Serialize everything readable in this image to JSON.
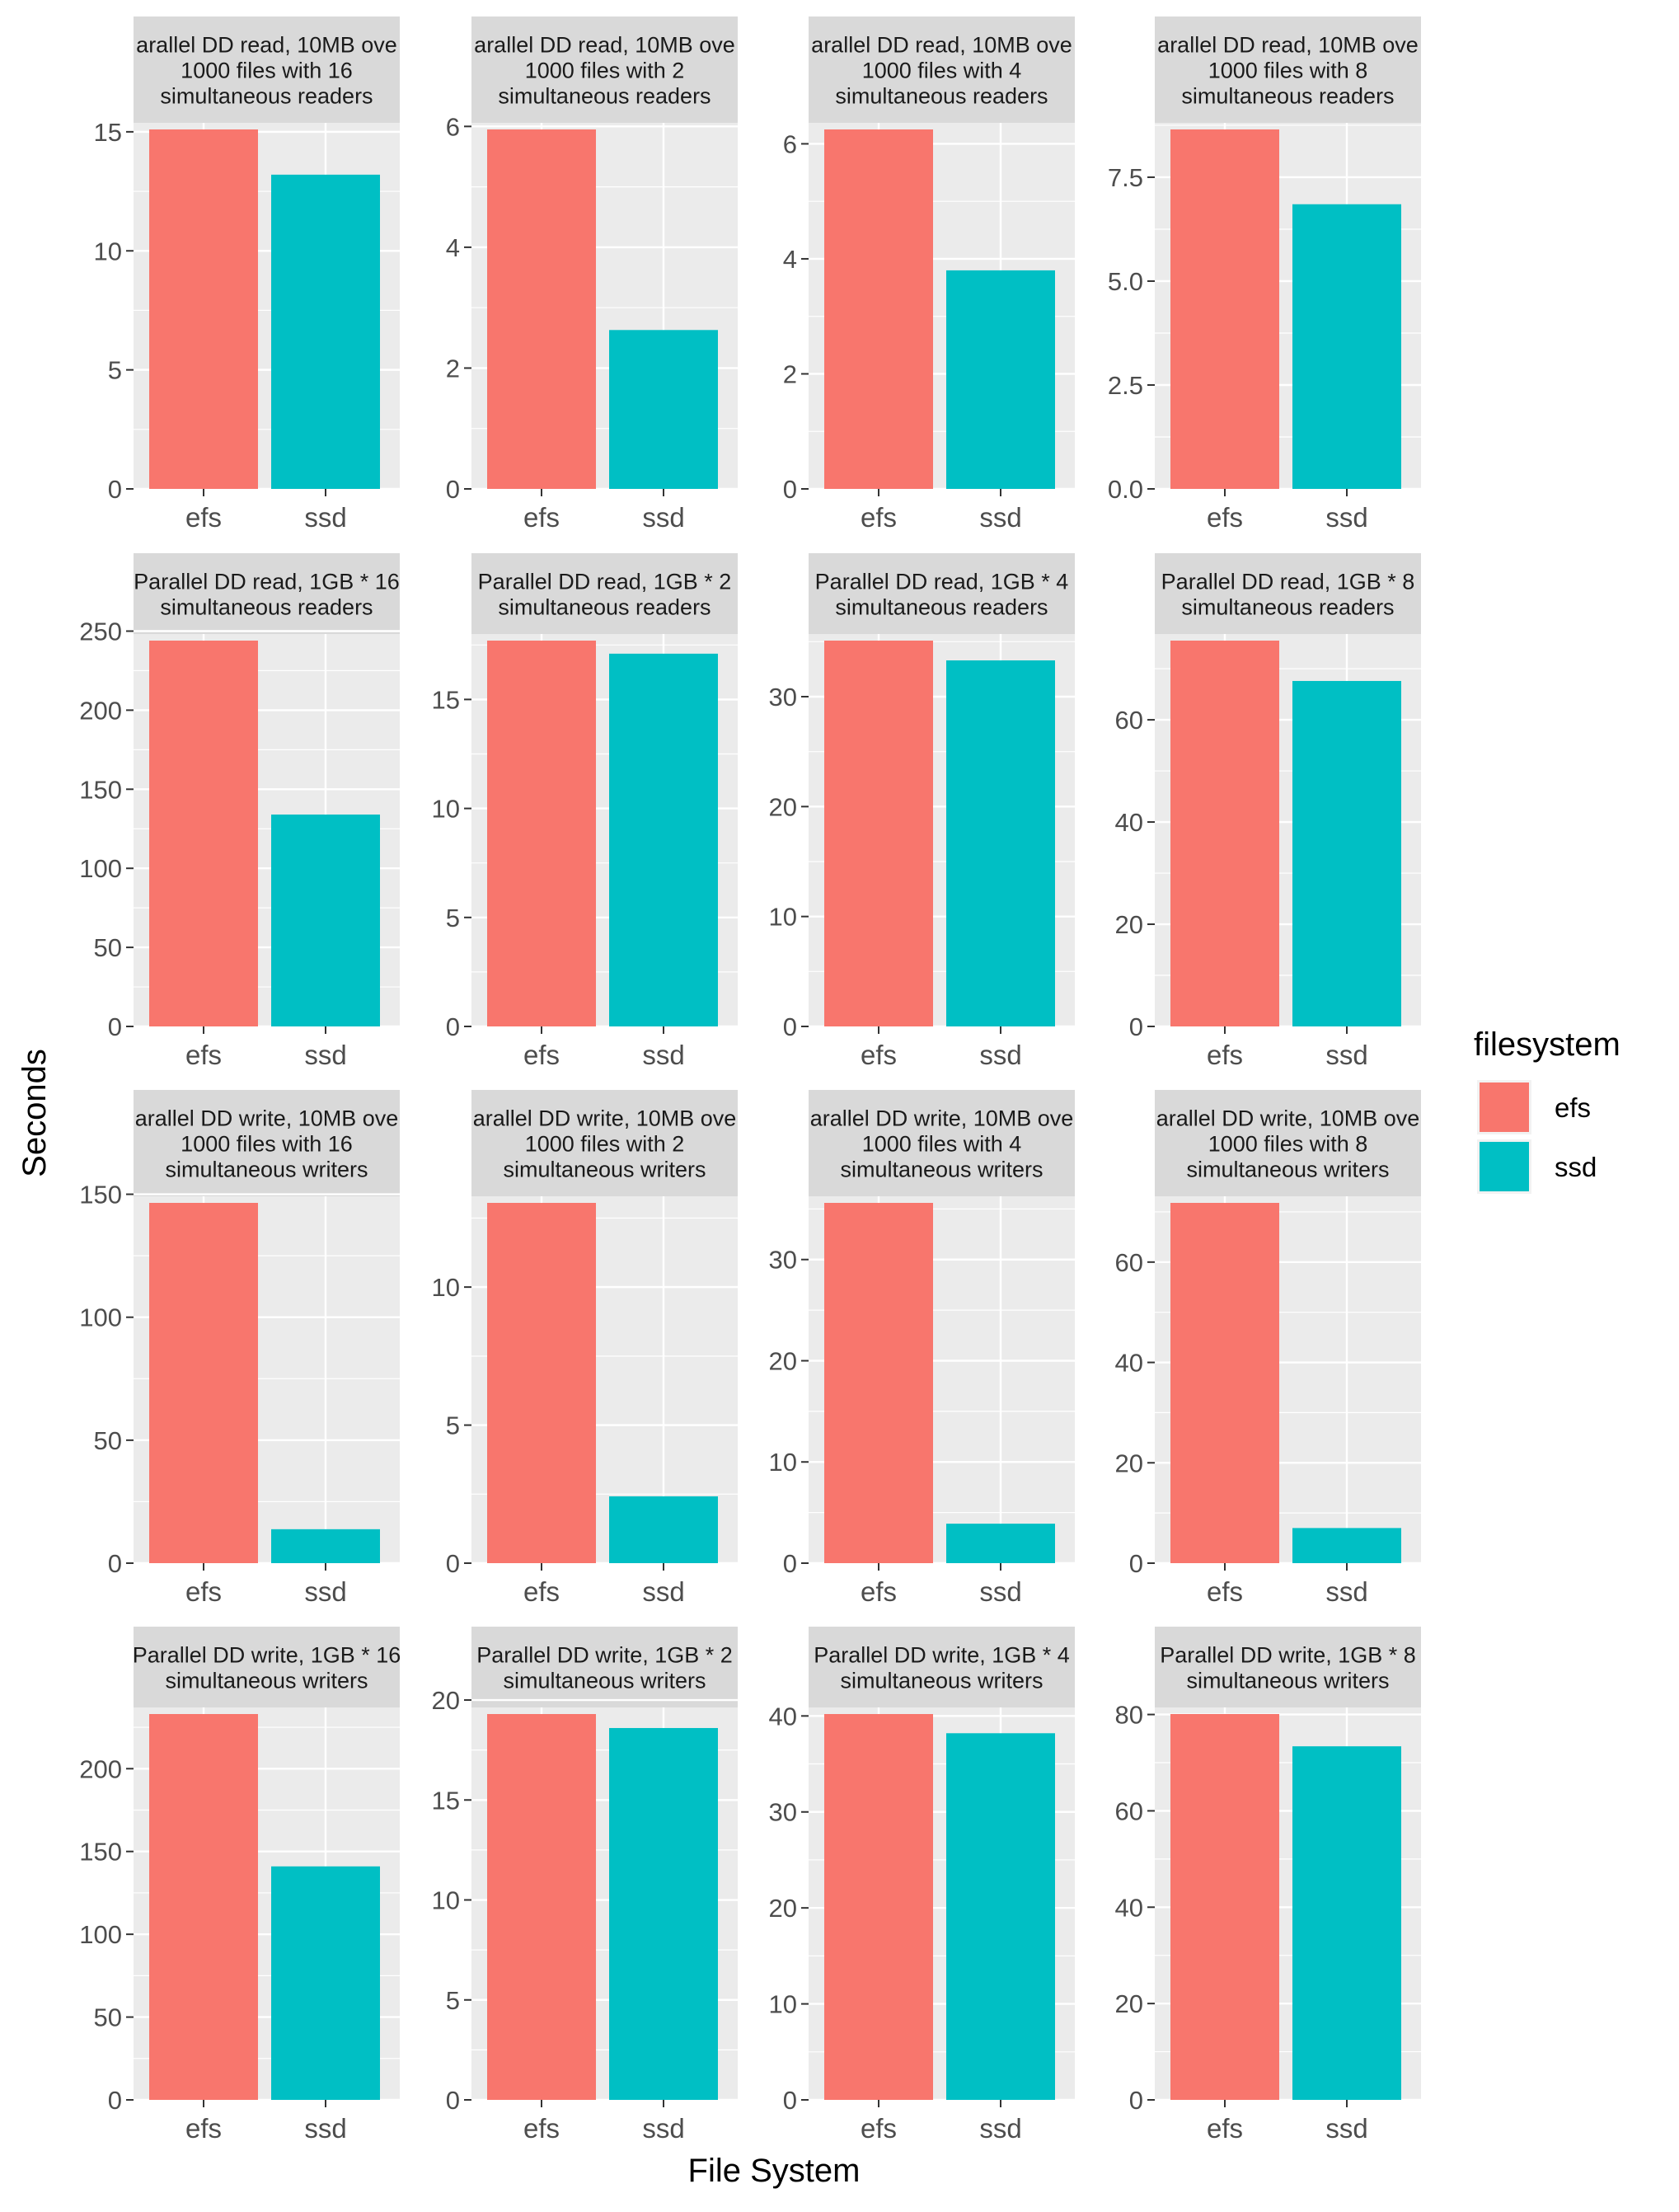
{
  "chart_data": {
    "type": "bar",
    "facet_layout": "4x4 grid, independent y scales",
    "xlabel": "File System",
    "ylabel": "Seconds",
    "legend": {
      "title": "filesystem",
      "position": "right",
      "entries": [
        {
          "label": "efs",
          "color": "#F8766D"
        },
        {
          "label": "ssd",
          "color": "#00BFC4"
        }
      ]
    },
    "categories": [
      "efs",
      "ssd"
    ],
    "panels": [
      {
        "strip": [
          "arallel DD read, 10MB ove",
          "1000 files with 16",
          "simultaneous readers"
        ],
        "values": [
          15.1,
          13.2
        ],
        "ylim": [
          0,
          15.1
        ],
        "yticks": [
          0,
          5,
          10,
          15
        ],
        "ytick_labels": [
          "0",
          "5",
          "10",
          "15"
        ]
      },
      {
        "strip": [
          "arallel DD read, 10MB ove",
          "1000 files with 2",
          "simultaneous readers"
        ],
        "values": [
          5.95,
          2.63
        ],
        "ylim": [
          0,
          5.95
        ],
        "yticks": [
          0,
          2,
          4,
          6
        ],
        "ytick_labels": [
          "0",
          "2",
          "4",
          "6"
        ]
      },
      {
        "strip": [
          "arallel DD read, 10MB ove",
          "1000 files with 4",
          "simultaneous readers"
        ],
        "values": [
          6.25,
          3.8
        ],
        "ylim": [
          0,
          6.25
        ],
        "yticks": [
          0,
          2,
          4,
          6
        ],
        "ytick_labels": [
          "0",
          "2",
          "4",
          "6"
        ]
      },
      {
        "strip": [
          "arallel DD read, 10MB ove",
          "1000 files with 8",
          "simultaneous readers"
        ],
        "values": [
          8.65,
          6.85
        ],
        "ylim": [
          0,
          8.65
        ],
        "yticks": [
          0,
          2.5,
          5,
          7.5
        ],
        "ytick_labels": [
          "0.0",
          "2.5",
          "5.0",
          "7.5"
        ]
      },
      {
        "strip": [
          "Parallel DD read, 1GB * 16",
          "simultaneous readers"
        ],
        "values": [
          244,
          134
        ],
        "ylim": [
          0,
          244
        ],
        "yticks": [
          0,
          50,
          100,
          150,
          200,
          250
        ],
        "ytick_labels": [
          "0",
          "50",
          "100",
          "150",
          "200",
          "250"
        ]
      },
      {
        "strip": [
          "Parallel DD read, 1GB * 2",
          "simultaneous readers"
        ],
        "values": [
          17.7,
          17.1
        ],
        "ylim": [
          0,
          17.7
        ],
        "yticks": [
          0,
          5,
          10,
          15
        ],
        "ytick_labels": [
          "0",
          "5",
          "10",
          "15"
        ]
      },
      {
        "strip": [
          "Parallel DD read, 1GB * 4",
          "simultaneous readers"
        ],
        "values": [
          35.1,
          33.3
        ],
        "ylim": [
          0,
          35.1
        ],
        "yticks": [
          0,
          10,
          20,
          30
        ],
        "ytick_labels": [
          "0",
          "10",
          "20",
          "30"
        ]
      },
      {
        "strip": [
          "Parallel DD read, 1GB * 8",
          "simultaneous readers"
        ],
        "values": [
          75.5,
          67.6
        ],
        "ylim": [
          0,
          75.5
        ],
        "yticks": [
          0,
          20,
          40,
          60
        ],
        "ytick_labels": [
          "0",
          "20",
          "40",
          "60"
        ]
      },
      {
        "strip": [
          "arallel DD write, 10MB ove",
          "1000 files with 16",
          "simultaneous writers"
        ],
        "values": [
          146.5,
          13.8
        ],
        "ylim": [
          0,
          146.5
        ],
        "yticks": [
          0,
          50,
          100,
          150
        ],
        "ytick_labels": [
          "0",
          "50",
          "100",
          "150"
        ]
      },
      {
        "strip": [
          "arallel DD write, 10MB ove",
          "1000 files with 2",
          "simultaneous writers"
        ],
        "values": [
          13.05,
          2.42
        ],
        "ylim": [
          0,
          13.05
        ],
        "yticks": [
          0,
          5,
          10
        ],
        "ytick_labels": [
          "0",
          "5",
          "10"
        ]
      },
      {
        "strip": [
          "arallel DD write, 10MB ove",
          "1000 files with 4",
          "simultaneous writers"
        ],
        "values": [
          35.6,
          3.9
        ],
        "ylim": [
          0,
          35.6
        ],
        "yticks": [
          0,
          10,
          20,
          30
        ],
        "ytick_labels": [
          "0",
          "10",
          "20",
          "30"
        ]
      },
      {
        "strip": [
          "arallel DD write, 10MB ove",
          "1000 files with 8",
          "simultaneous writers"
        ],
        "values": [
          71.8,
          7.0
        ],
        "ylim": [
          0,
          71.8
        ],
        "yticks": [
          0,
          20,
          40,
          60
        ],
        "ytick_labels": [
          "0",
          "20",
          "40",
          "60"
        ]
      },
      {
        "strip": [
          "Parallel DD write, 1GB * 16",
          "simultaneous writers"
        ],
        "values": [
          233,
          141
        ],
        "ylim": [
          0,
          233
        ],
        "yticks": [
          0,
          50,
          100,
          150,
          200
        ],
        "ytick_labels": [
          "0",
          "50",
          "100",
          "150",
          "200"
        ]
      },
      {
        "strip": [
          "Parallel DD write, 1GB * 2",
          "simultaneous writers"
        ],
        "values": [
          19.3,
          18.6
        ],
        "ylim": [
          0,
          19.3
        ],
        "yticks": [
          0,
          5,
          10,
          15,
          20
        ],
        "ytick_labels": [
          "0",
          "5",
          "10",
          "15",
          "20"
        ]
      },
      {
        "strip": [
          "Parallel DD write, 1GB * 4",
          "simultaneous writers"
        ],
        "values": [
          40.2,
          38.2
        ],
        "ylim": [
          0,
          40.2
        ],
        "yticks": [
          0,
          10,
          20,
          30,
          40
        ],
        "ytick_labels": [
          "0",
          "10",
          "20",
          "30",
          "40"
        ]
      },
      {
        "strip": [
          "Parallel DD write, 1GB * 8",
          "simultaneous writers"
        ],
        "values": [
          80.1,
          73.4
        ],
        "ylim": [
          0,
          80.1
        ],
        "yticks": [
          0,
          20,
          40,
          60,
          80
        ],
        "ytick_labels": [
          "0",
          "20",
          "40",
          "60",
          "80"
        ]
      }
    ]
  }
}
